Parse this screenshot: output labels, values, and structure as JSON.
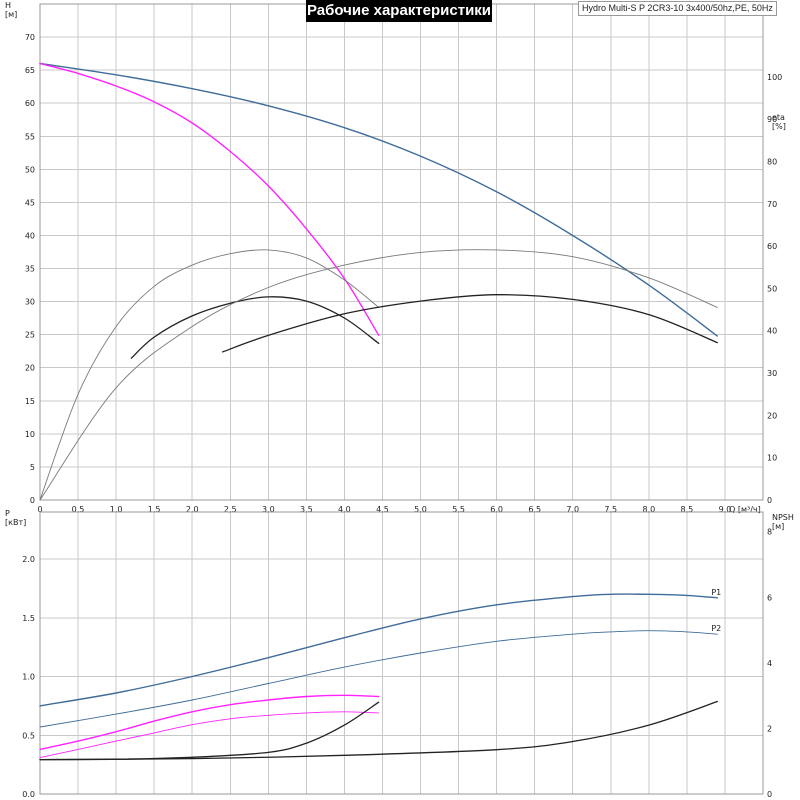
{
  "title": "Рабочие характеристики",
  "subtitle": "Hydro Multi-S P 2CR3-10 3x400/50hz,PE, 50Hz",
  "colors": {
    "blue": "#3f6c99",
    "magenta": "#ff22ff",
    "black": "#222222",
    "gray": "#7a7a7a",
    "grid": "#c8c8c8"
  },
  "chart_data": [
    {
      "type": "line",
      "xlabel": "Q [м³/ч]",
      "ylabel": "H\n[м]",
      "y2label": "eta\n[%]",
      "xlim": [
        0,
        9.5
      ],
      "ylim": [
        0,
        75
      ],
      "y2lim": [
        0,
        117.2
      ],
      "x_ticks": [
        "0",
        "0,5",
        "1,0",
        "1,5",
        "2,0",
        "2,5",
        "3,0",
        "3,5",
        "4,0",
        "4,5",
        "5,0",
        "5,5",
        "6,0",
        "6,5",
        "7,0",
        "7,5",
        "8,0",
        "8,5",
        "9,0"
      ],
      "y_ticks": [
        "0",
        "5",
        "10",
        "15",
        "20",
        "25",
        "30",
        "35",
        "40",
        "45",
        "50",
        "55",
        "60",
        "65",
        "70"
      ],
      "y2_ticks": [
        "0",
        "10",
        "20",
        "30",
        "40",
        "50",
        "60",
        "70",
        "80",
        "90",
        "100"
      ],
      "grid": true,
      "series": [
        {
          "axis": "y",
          "color": "blue",
          "width": 1.4,
          "points": [
            [
              0,
              66
            ],
            [
              1,
              64.3
            ],
            [
              2,
              62.2
            ],
            [
              3,
              59.6
            ],
            [
              4,
              56.3
            ],
            [
              5,
              52
            ],
            [
              6,
              46.6
            ],
            [
              7,
              40
            ],
            [
              8,
              32.5
            ],
            [
              8.9,
              24.8
            ]
          ]
        },
        {
          "axis": "y",
          "color": "magenta",
          "width": 1.4,
          "points": [
            [
              0,
              66
            ],
            [
              0.5,
              64.5
            ],
            [
              1,
              62.6
            ],
            [
              1.5,
              60.2
            ],
            [
              2,
              57
            ],
            [
              2.5,
              52.7
            ],
            [
              3,
              47.5
            ],
            [
              3.5,
              41
            ],
            [
              4,
              33.5
            ],
            [
              4.45,
              24.9
            ]
          ]
        },
        {
          "axis": "y2",
          "color": "gray",
          "width": 0.9,
          "points": [
            [
              0,
              0
            ],
            [
              0.5,
              25
            ],
            [
              1,
              41
            ],
            [
              1.5,
              50.5
            ],
            [
              2,
              55.5
            ],
            [
              2.5,
              58.2
            ],
            [
              3,
              59.1
            ],
            [
              3.5,
              57.2
            ],
            [
              4,
              52
            ],
            [
              4.45,
              45.5
            ]
          ]
        },
        {
          "axis": "y2",
          "color": "black",
          "width": 1.3,
          "points": [
            [
              1.2,
              33.5
            ],
            [
              1.5,
              38.5
            ],
            [
              2,
              43.5
            ],
            [
              2.5,
              46.5
            ],
            [
              3,
              48
            ],
            [
              3.5,
              47
            ],
            [
              4,
              43
            ],
            [
              4.45,
              37
            ]
          ]
        },
        {
          "axis": "y2",
          "color": "gray",
          "width": 0.9,
          "points": [
            [
              0,
              0
            ],
            [
              1,
              26.5
            ],
            [
              2,
              41
            ],
            [
              3,
              50.2
            ],
            [
              4,
              55.5
            ],
            [
              5,
              58.5
            ],
            [
              6,
              59.1
            ],
            [
              7,
              57.5
            ],
            [
              8,
              52.5
            ],
            [
              8.9,
              45.5
            ]
          ]
        },
        {
          "axis": "y2",
          "color": "black",
          "width": 1.3,
          "points": [
            [
              2.4,
              35
            ],
            [
              3,
              38.9
            ],
            [
              4,
              44
            ],
            [
              5,
              47
            ],
            [
              6,
              48.5
            ],
            [
              7,
              47.4
            ],
            [
              8,
              43.8
            ],
            [
              8.9,
              37.2
            ]
          ]
        }
      ]
    },
    {
      "type": "line",
      "xlabel": "",
      "ylabel": "P\n[кВт]",
      "y2label": "NPSH\n[м]",
      "xlim": [
        0,
        9.5
      ],
      "ylim": [
        0,
        2.4
      ],
      "y2lim": [
        0,
        8.6
      ],
      "y_ticks": [
        "0.0",
        "0.5",
        "1.0",
        "1.5",
        "2.0"
      ],
      "y2_ticks": [
        "0",
        "2",
        "4",
        "6",
        "8"
      ],
      "grid": true,
      "series": [
        {
          "name": "P1",
          "axis": "y",
          "color": "blue",
          "width": 1.4,
          "points": [
            [
              0,
              0.75
            ],
            [
              1,
              0.86
            ],
            [
              2,
              1.0
            ],
            [
              3,
              1.16
            ],
            [
              4,
              1.33
            ],
            [
              5,
              1.49
            ],
            [
              6,
              1.61
            ],
            [
              7,
              1.68
            ],
            [
              7.5,
              1.7
            ],
            [
              8,
              1.7
            ],
            [
              8.5,
              1.69
            ],
            [
              8.9,
              1.67
            ]
          ]
        },
        {
          "name": "P2",
          "axis": "y",
          "color": "blue",
          "width": 0.9,
          "points": [
            [
              0,
              0.57
            ],
            [
              1,
              0.68
            ],
            [
              2,
              0.8
            ],
            [
              3,
              0.94
            ],
            [
              4,
              1.08
            ],
            [
              5,
              1.2
            ],
            [
              6,
              1.3
            ],
            [
              7,
              1.36
            ],
            [
              7.5,
              1.38
            ],
            [
              8,
              1.39
            ],
            [
              8.5,
              1.38
            ],
            [
              8.9,
              1.36
            ]
          ]
        },
        {
          "axis": "y",
          "color": "magenta",
          "width": 1.4,
          "points": [
            [
              0,
              0.38
            ],
            [
              0.5,
              0.45
            ],
            [
              1,
              0.53
            ],
            [
              1.5,
              0.62
            ],
            [
              2,
              0.7
            ],
            [
              2.5,
              0.76
            ],
            [
              3,
              0.8
            ],
            [
              3.5,
              0.83
            ],
            [
              4,
              0.84
            ],
            [
              4.45,
              0.83
            ]
          ]
        },
        {
          "axis": "y",
          "color": "magenta",
          "width": 0.9,
          "points": [
            [
              0,
              0.31
            ],
            [
              0.5,
              0.38
            ],
            [
              1,
              0.45
            ],
            [
              1.5,
              0.52
            ],
            [
              2,
              0.59
            ],
            [
              2.5,
              0.64
            ],
            [
              3,
              0.67
            ],
            [
              3.5,
              0.69
            ],
            [
              4,
              0.7
            ],
            [
              4.45,
              0.69
            ]
          ]
        },
        {
          "axis": "y2",
          "color": "black",
          "width": 1.3,
          "points": [
            [
              0,
              1.05
            ],
            [
              1,
              1.06
            ],
            [
              2,
              1.12
            ],
            [
              3,
              1.27
            ],
            [
              3.5,
              1.55
            ],
            [
              4,
              2.1
            ],
            [
              4.45,
              2.8
            ]
          ]
        },
        {
          "axis": "y2",
          "color": "black",
          "width": 1.3,
          "points": [
            [
              0,
              1.05
            ],
            [
              2,
              1.08
            ],
            [
              4,
              1.18
            ],
            [
              6,
              1.35
            ],
            [
              7,
              1.6
            ],
            [
              8,
              2.1
            ],
            [
              8.9,
              2.82
            ]
          ]
        }
      ]
    }
  ]
}
